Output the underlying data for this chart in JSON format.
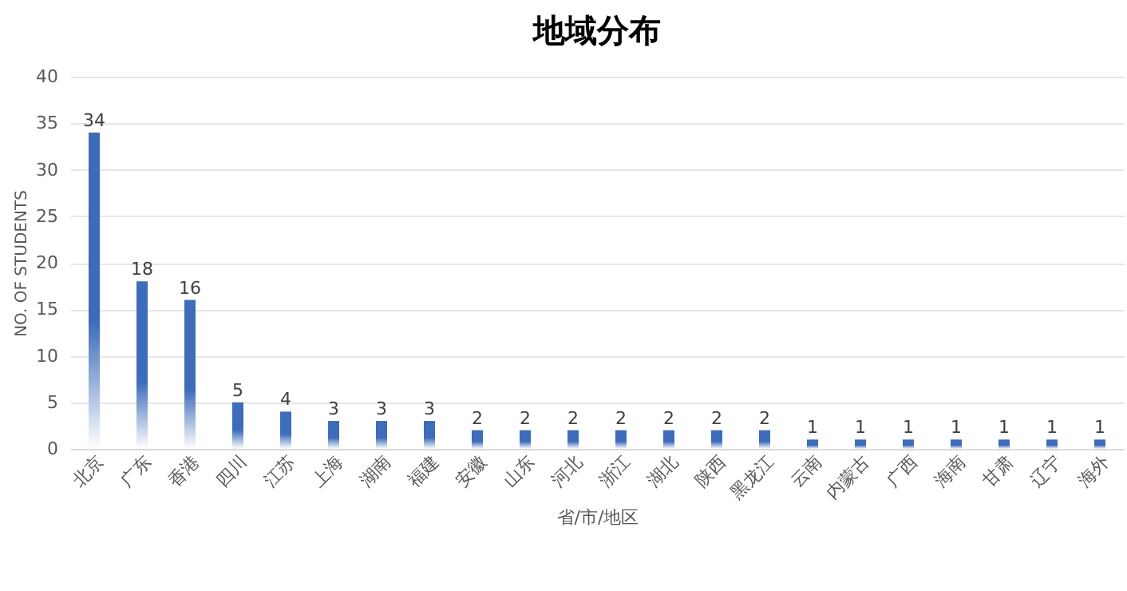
{
  "chart_data": {
    "type": "bar",
    "title": "地域分布",
    "xlabel": "省/市/地区",
    "ylabel": "NO. OF STUDENTS",
    "categories": [
      "北京",
      "广东",
      "香港",
      "四川",
      "江苏",
      "上海",
      "湖南",
      "福建",
      "安徽",
      "山东",
      "河北",
      "浙江",
      "湖北",
      "陕西",
      "黑龙江",
      "云南",
      "内蒙古",
      "广西",
      "海南",
      "甘肃",
      "辽宁",
      "海外"
    ],
    "values": [
      34,
      18,
      16,
      5,
      4,
      3,
      3,
      3,
      2,
      2,
      2,
      2,
      2,
      2,
      2,
      1,
      1,
      1,
      1,
      1,
      1,
      1
    ],
    "color": "#3d6cb9",
    "ylim": [
      0,
      40
    ],
    "yticks": [
      0,
      5,
      10,
      15,
      20,
      25,
      30,
      35,
      40
    ],
    "grid": "y",
    "data_labels": true
  }
}
